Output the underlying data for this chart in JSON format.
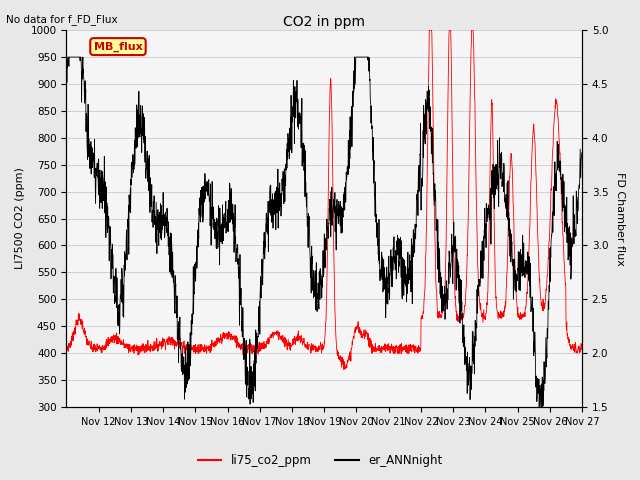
{
  "title": "CO2 in ppm",
  "subtitle": "No data for f_FD_Flux",
  "ylabel_left": "LI7500 CO2 (ppm)",
  "ylabel_right": "FD Chamber flux",
  "ylim_left": [
    300,
    1000
  ],
  "ylim_right": [
    1.5,
    5.0
  ],
  "yticks_left": [
    300,
    350,
    400,
    450,
    500,
    550,
    600,
    650,
    700,
    750,
    800,
    850,
    900,
    950,
    1000
  ],
  "yticks_right": [
    1.5,
    2.0,
    2.5,
    3.0,
    3.5,
    4.0,
    4.5,
    5.0
  ],
  "xticklabels": [
    "Nov 12",
    "Nov 13",
    "Nov 14",
    "Nov 15",
    "Nov 16",
    "Nov 17",
    "Nov 18",
    "Nov 19",
    "Nov 20",
    "Nov 21",
    "Nov 22",
    "Nov 23",
    "Nov 24",
    "Nov 25",
    "Nov 26",
    "Nov 27"
  ],
  "color_red": "#ff0000",
  "color_black": "#000000",
  "legend_box_facecolor": "#ffff99",
  "legend_box_edgecolor": "#cc0000",
  "legend_box_text": "MB_flux",
  "legend_text_color": "#cc0000",
  "background_color": "#e8e8e8",
  "plot_bg_color": "#f5f5f5",
  "grid_color": "#d0d0d0",
  "n_points": 2000,
  "figsize": [
    6.4,
    4.8
  ],
  "dpi": 100
}
